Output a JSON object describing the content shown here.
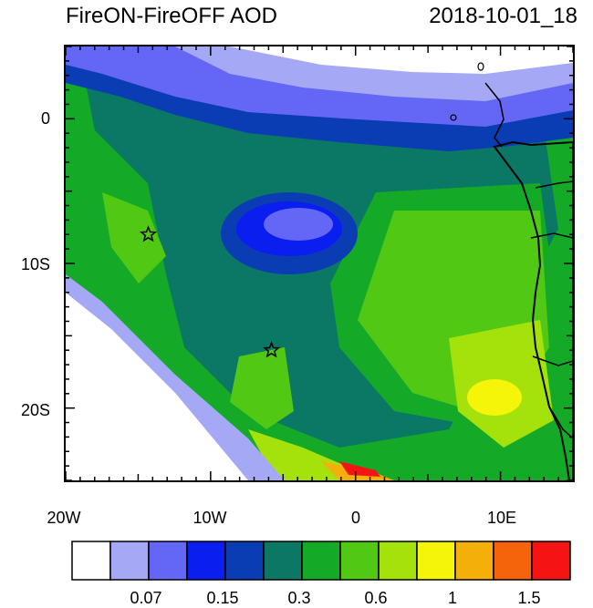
{
  "title_left": "FireON-FireOFF AOD",
  "title_right": "2018-10-01_18",
  "yticks": [
    "0",
    "10S",
    "20S"
  ],
  "xticks": [
    "20W",
    "10W",
    "0",
    "10E"
  ],
  "colorbar": {
    "colors": [
      "#ffffff",
      "#a5a9f5",
      "#6467f5",
      "#0a1ef0",
      "#0a3cb4",
      "#0a7864",
      "#14aa28",
      "#50c814",
      "#a5e10a",
      "#f5f50a",
      "#f5af0a",
      "#f5640a",
      "#f51414"
    ],
    "labels": [
      "0.07",
      "0.15",
      "0.3",
      "0.6",
      "1",
      "1.5"
    ]
  },
  "markers": [
    {
      "name": "star-marker-1",
      "lon": -14.3,
      "lat": -8.0
    },
    {
      "name": "star-marker-2",
      "lon": -5.8,
      "lat": -16.0
    }
  ]
}
